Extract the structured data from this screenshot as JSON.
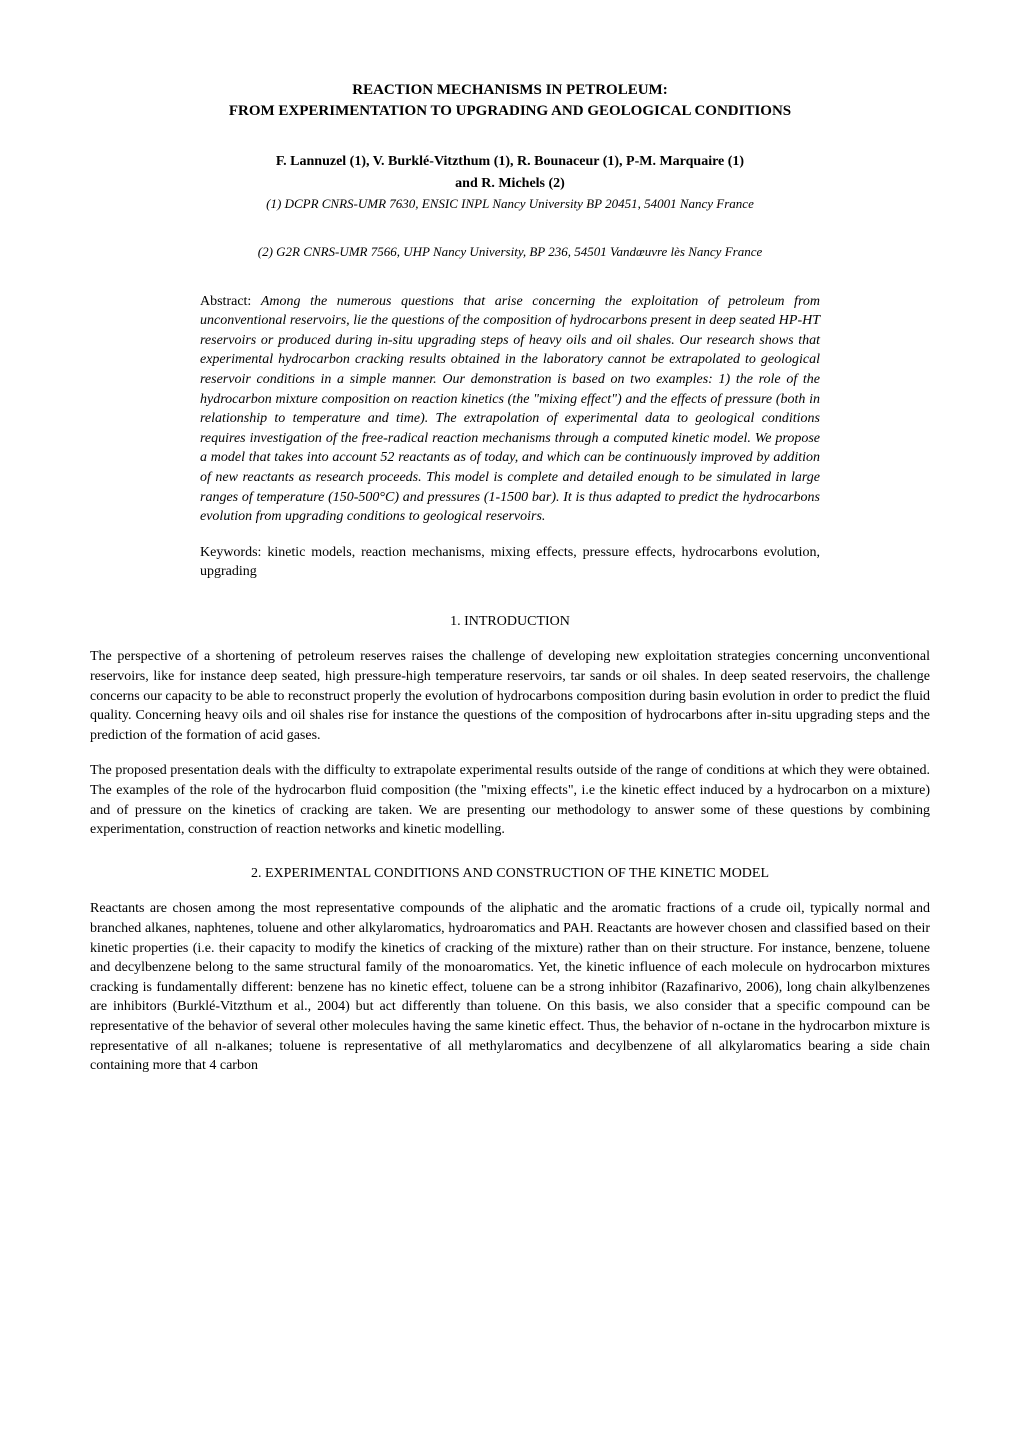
{
  "title": "REACTION MECHANISMS IN PETROLEUM:\nFROM EXPERIMENTATION TO UPGRADING AND GEOLOGICAL CONDITIONS",
  "authors_line1": "F. Lannuzel (1), V. Burklé-Vitzthum (1), R. Bounaceur (1), P-M. Marquaire (1)",
  "authors_line2": "and R. Michels (2)",
  "affiliation1": "(1)  DCPR CNRS-UMR 7630, ENSIC INPL Nancy University BP 20451, 54001 Nancy France",
  "affiliation2": "(2) G2R CNRS-UMR 7566, UHP Nancy University, BP 236, 54501 Vandœuvre lès Nancy France",
  "abstract_label": "Abstract: ",
  "abstract_text": "Among the numerous questions that arise concerning the exploitation of petroleum from unconventional reservoirs, lie the questions of the composition of hydrocarbons present in deep seated HP-HT reservoirs or produced during in-situ upgrading steps of heavy oils and oil shales. Our research shows that experimental hydrocarbon cracking results obtained in the laboratory cannot be extrapolated to geological reservoir conditions in a simple manner. Our demonstration is based on two examples: 1) the role of the hydrocarbon mixture composition on reaction kinetics (the \"mixing effect\") and the effects of pressure (both in relationship to temperature and time). The extrapolation of experimental data to geological conditions requires investigation of the free-radical reaction mechanisms through a computed kinetic model. We propose a model that takes into account 52 reactants as of today, and which can be continuously improved by addition of new reactants as research proceeds. This model is complete and detailed enough to be simulated in large ranges of temperature (150-500°C) and pressures (1-1500 bar). It is thus adapted to predict the hydrocarbons evolution from upgrading conditions to geological reservoirs.",
  "keywords_label": "Keywords: ",
  "keywords_text": "kinetic models, reaction mechanisms, mixing effects, pressure effects, hydrocarbons evolution, upgrading",
  "section1_heading": "1.    INTRODUCTION",
  "section1_p1": "The perspective of a shortening of petroleum reserves raises the challenge of developing new exploitation strategies concerning unconventional reservoirs, like for instance deep seated, high pressure-high temperature reservoirs, tar sands or oil shales. In deep seated reservoirs, the challenge concerns our capacity to be able to reconstruct properly the evolution of hydrocarbons composition during basin evolution in order to predict the fluid quality. Concerning heavy oils and oil shales rise for instance the questions of the composition of hydrocarbons after in-situ upgrading steps and the prediction of the formation of acid gases.",
  "section1_p2": "The proposed presentation deals with the difficulty to extrapolate experimental results outside of the range of conditions at which they were obtained. The examples of the role of the hydrocarbon fluid composition (the \"mixing effects\", i.e the kinetic effect induced by a hydrocarbon on a mixture) and of pressure on the kinetics of cracking are taken. We are presenting our methodology to answer some of these questions by combining experimentation, construction of reaction networks and kinetic modelling.",
  "section2_heading": "2.    EXPERIMENTAL CONDITIONS AND CONSTRUCTION OF THE KINETIC MODEL",
  "section2_p1": "Reactants are chosen among the most representative compounds of the aliphatic and the aromatic fractions of a crude oil, typically normal and branched alkanes, naphtenes, toluene and other alkylaromatics, hydroaromatics and PAH. Reactants are however chosen and classified based on their kinetic properties (i.e. their capacity to modify the kinetics of cracking of the mixture) rather than on their structure. For instance, benzene, toluene and decylbenzene belong to the same structural family of the monoaromatics. Yet, the kinetic influence of each molecule on hydrocarbon mixtures cracking is fundamentally different: benzene has no kinetic effect, toluene can be a strong inhibitor (Razafinarivo, 2006), long chain alkylbenzenes are inhibitors (Burklé-Vitzthum et al., 2004) but act differently than toluene. On this basis, we also consider that a specific compound can be representative of the behavior of several other molecules having the same kinetic effect. Thus, the behavior of n-octane in the hydrocarbon mixture is representative of all n-alkanes; toluene is representative of all methylaromatics and decylbenzene of all alkylaromatics bearing a side chain containing more that 4 carbon"
}
